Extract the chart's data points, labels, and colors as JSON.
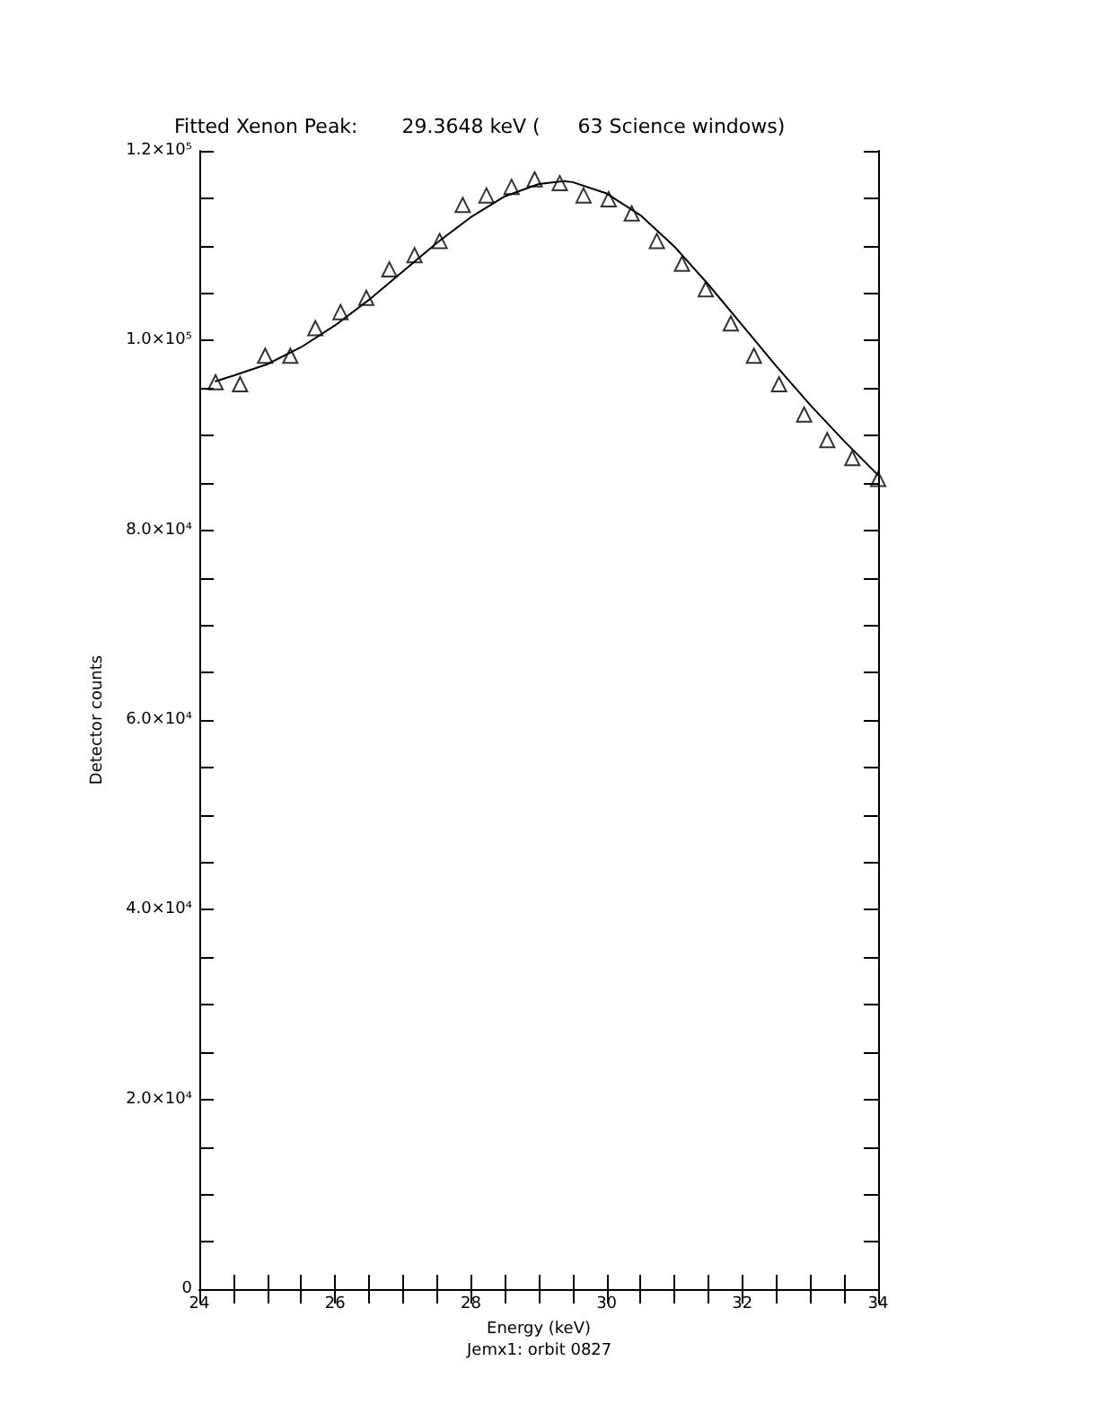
{
  "chart_data": {
    "type": "scatter",
    "title": "Fitted Xenon Peak:       29.3648 keV (      63 Science windows)",
    "xlabel": "Energy (keV)",
    "ylabel": "Detector counts",
    "annotations": [
      "Jemx1: orbit 0827"
    ],
    "x": [
      24.24,
      24.6,
      24.97,
      25.34,
      25.71,
      26.08,
      26.46,
      26.8,
      27.17,
      27.54,
      27.88,
      28.23,
      28.6,
      28.94,
      29.31,
      29.66,
      30.03,
      30.37,
      30.74,
      31.11,
      31.46,
      31.83,
      32.17,
      32.54,
      32.91,
      33.25,
      33.62,
      34.0
    ],
    "series": [
      {
        "type": "scatter",
        "color": "#000000",
        "marker": "triangle",
        "values": [
          95600,
          95400,
          98400,
          98400,
          101300,
          103000,
          104500,
          107500,
          109000,
          110500,
          114300,
          115300,
          116200,
          117000,
          116600,
          115300,
          114900,
          113400,
          110500,
          108100,
          105400,
          101800,
          98400,
          95400,
          92200,
          89500,
          87600,
          85400
        ]
      },
      {
        "type": "line",
        "color": "#000000",
        "line_style": "solid",
        "marker": "none",
        "x": [
          24.24,
          24.5,
          25,
          25.5,
          26,
          26.5,
          27,
          27.5,
          28,
          28.5,
          29,
          29.37,
          29.5,
          30,
          30.5,
          31,
          31.5,
          32,
          32.5,
          33,
          33.5,
          34
        ],
        "values": [
          95700,
          96300,
          97500,
          99300,
          101600,
          104300,
          107300,
          110300,
          113000,
          115200,
          116500,
          116800,
          116700,
          115500,
          113200,
          109900,
          105900,
          101600,
          97300,
          93200,
          89400,
          85800
        ]
      }
    ],
    "xlim": [
      24,
      34
    ],
    "ylim": [
      0,
      120000
    ],
    "xticks": [
      24,
      {
        "value": 24.5,
        "label": null
      },
      {
        "value": 25,
        "label": null
      },
      {
        "value": 25.5,
        "label": null
      },
      26,
      {
        "value": 26.5,
        "label": null
      },
      {
        "value": 27,
        "label": null
      },
      {
        "value": 27.5,
        "label": null
      },
      28,
      {
        "value": 28.5,
        "label": null
      },
      {
        "value": 29,
        "label": null
      },
      {
        "value": 29.5,
        "label": null
      },
      30,
      {
        "value": 30.5,
        "label": null
      },
      {
        "value": 31,
        "label": null
      },
      {
        "value": 31.5,
        "label": null
      },
      32,
      {
        "value": 32.5,
        "label": null
      },
      {
        "value": 33,
        "label": null
      },
      {
        "value": 33.5,
        "label": null
      },
      34
    ],
    "yticks": [
      0,
      {
        "value": 5000,
        "label": null
      },
      {
        "value": 10000,
        "label": null
      },
      {
        "value": 15000,
        "label": null
      },
      {
        "value": 20000,
        "label": "2.0×10⁴"
      },
      {
        "value": 25000,
        "label": null
      },
      {
        "value": 30000,
        "label": null
      },
      {
        "value": 35000,
        "label": null
      },
      {
        "value": 40000,
        "label": "4.0×10⁴"
      },
      {
        "value": 45000,
        "label": null
      },
      {
        "value": 50000,
        "label": null
      },
      {
        "value": 55000,
        "label": null
      },
      {
        "value": 60000,
        "label": "6.0×10⁴"
      },
      {
        "value": 65000,
        "label": null
      },
      {
        "value": 70000,
        "label": null
      },
      {
        "value": 75000,
        "label": null
      },
      {
        "value": 80000,
        "label": "8.0×10⁴"
      },
      {
        "value": 85000,
        "label": null
      },
      {
        "value": 90000,
        "label": null
      },
      {
        "value": 95000,
        "label": null
      },
      {
        "value": 100000,
        "label": "1.0×10⁵"
      },
      {
        "value": 105000,
        "label": null
      },
      {
        "value": 110000,
        "label": null
      },
      {
        "value": 115000,
        "label": null
      },
      {
        "value": 120000,
        "label": "1.2×10⁵"
      }
    ],
    "grid": false
  }
}
